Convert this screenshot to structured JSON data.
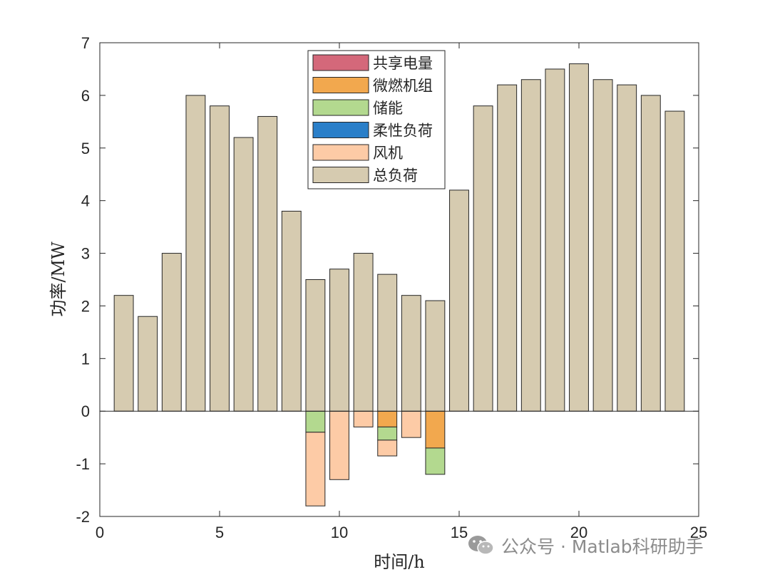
{
  "chart_data": {
    "type": "bar",
    "stacked": true,
    "xlabel": "时间/h",
    "ylabel": "功率/MW",
    "xlim": [
      0,
      25
    ],
    "ylim": [
      -2,
      7
    ],
    "xticks": [
      0,
      5,
      10,
      15,
      20,
      25
    ],
    "yticks": [
      -2,
      -1,
      0,
      1,
      2,
      3,
      4,
      5,
      6,
      7
    ],
    "legend_position": "top-center",
    "x": [
      1,
      2,
      3,
      4,
      5,
      6,
      7,
      8,
      9,
      10,
      11,
      12,
      13,
      14,
      15,
      16,
      17,
      18,
      19,
      20,
      21,
      22,
      23,
      24
    ],
    "series": [
      {
        "name": "共享电量",
        "color": "#d4687a",
        "values": [
          0,
          0,
          0,
          0,
          0,
          0,
          0,
          0,
          0,
          0,
          0,
          0,
          0,
          0,
          0,
          0,
          0,
          0,
          0,
          0,
          0,
          0,
          0,
          0
        ]
      },
      {
        "name": "微燃机组",
        "color": "#f2a84e",
        "values": [
          0,
          0,
          0,
          0,
          0,
          0,
          0,
          0,
          0,
          0,
          0,
          -0.3,
          0,
          -0.7,
          0,
          0,
          0,
          0,
          0,
          0,
          0,
          0,
          0,
          0
        ]
      },
      {
        "name": "储能",
        "color": "#b3d98f",
        "values": [
          0,
          0,
          0,
          0,
          0,
          0,
          0,
          0,
          -0.4,
          0,
          0,
          -0.25,
          0,
          -0.5,
          0,
          0,
          0,
          0,
          0,
          0,
          0,
          0,
          0,
          0
        ]
      },
      {
        "name": "柔性负荷",
        "color": "#2a7fc9",
        "values": [
          0,
          0,
          0,
          0,
          0,
          0,
          0,
          0,
          0,
          0,
          0,
          0,
          0,
          0,
          0,
          0,
          0,
          0,
          0,
          0,
          0,
          0,
          0,
          0
        ]
      },
      {
        "name": "风机",
        "color": "#fdcba6",
        "values": [
          0,
          0,
          0,
          0,
          0,
          0,
          0,
          0,
          -1.4,
          -1.3,
          -0.3,
          -0.3,
          -0.5,
          0,
          0,
          0,
          0,
          0,
          0,
          0,
          0,
          0,
          0,
          0
        ]
      },
      {
        "name": "总负荷",
        "color": "#d6cbb0",
        "values": [
          2.2,
          1.8,
          3.0,
          6.0,
          5.8,
          5.2,
          5.6,
          3.8,
          2.5,
          2.7,
          3.0,
          2.6,
          2.2,
          2.1,
          4.2,
          5.8,
          6.2,
          6.3,
          6.5,
          6.6,
          6.3,
          6.2,
          6.0,
          5.7
        ]
      }
    ]
  },
  "watermark": {
    "text": "公众号 · Matlab科研助手",
    "icon": "wechat-icon"
  }
}
